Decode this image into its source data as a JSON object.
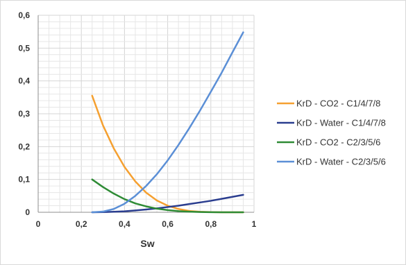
{
  "chart_data": {
    "type": "line",
    "title": "",
    "xlabel": "Sw",
    "ylabel": "",
    "xlim": [
      0,
      1
    ],
    "ylim": [
      0,
      0.6
    ],
    "x_ticks": [
      "0",
      "0,2",
      "0,4",
      "0,6",
      "0,8",
      "1"
    ],
    "y_ticks": [
      "0",
      "0,1",
      "0,2",
      "0,3",
      "0,4",
      "0,5",
      "0,6"
    ],
    "grid": true,
    "legend_position": "right",
    "series": [
      {
        "name": "KrD - CO2 - C1/4/7/8",
        "color": "#f5a030",
        "x": [
          0.25,
          0.3,
          0.35,
          0.4,
          0.45,
          0.5,
          0.55,
          0.6,
          0.65,
          0.7,
          0.75,
          0.8,
          0.85,
          0.9,
          0.95
        ],
        "y": [
          0.355,
          0.265,
          0.195,
          0.138,
          0.094,
          0.06,
          0.036,
          0.02,
          0.01,
          0.004,
          0.0015,
          0.0005,
          0.0001,
          0.0,
          0.0
        ]
      },
      {
        "name": "KrD - Water - C1/4/7/8",
        "color": "#2a3d8f",
        "x": [
          0.25,
          0.3,
          0.35,
          0.4,
          0.45,
          0.5,
          0.55,
          0.6,
          0.65,
          0.7,
          0.75,
          0.8,
          0.85,
          0.9,
          0.95
        ],
        "y": [
          0.0,
          0.0005,
          0.0015,
          0.003,
          0.0055,
          0.0085,
          0.012,
          0.016,
          0.02,
          0.025,
          0.03,
          0.035,
          0.041,
          0.047,
          0.053
        ]
      },
      {
        "name": "KrD - CO2 - C2/3/5/6",
        "color": "#2e8b35",
        "x": [
          0.25,
          0.3,
          0.35,
          0.4,
          0.45,
          0.5,
          0.55,
          0.6,
          0.65,
          0.7,
          0.75,
          0.8,
          0.85,
          0.9,
          0.95
        ],
        "y": [
          0.1,
          0.077,
          0.057,
          0.04,
          0.027,
          0.018,
          0.011,
          0.0065,
          0.0035,
          0.0018,
          0.0008,
          0.0003,
          0.0001,
          0.0,
          0.0
        ]
      },
      {
        "name": "KrD - Water - C2/3/5/6",
        "color": "#5b8fd6",
        "x": [
          0.25,
          0.3,
          0.35,
          0.4,
          0.45,
          0.5,
          0.55,
          0.6,
          0.65,
          0.7,
          0.75,
          0.8,
          0.85,
          0.9,
          0.95
        ],
        "y": [
          0.0,
          0.002,
          0.01,
          0.026,
          0.05,
          0.08,
          0.116,
          0.158,
          0.205,
          0.256,
          0.31,
          0.367,
          0.425,
          0.487,
          0.548
        ]
      }
    ]
  }
}
